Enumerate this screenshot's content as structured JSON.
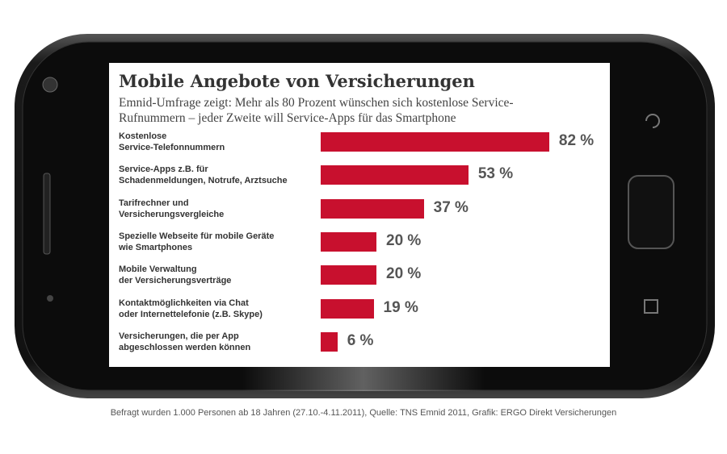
{
  "chart_data": {
    "type": "bar",
    "orientation": "horizontal",
    "title": "Mobile Angebote von Versicherungen",
    "subtitle": "Emnid-Umfrage zeigt: Mehr als 80 Prozent  wünschen sich kostenlose Service-\nRufnummern – jeder Zweite will Service-Apps für das Smartphone",
    "categories": [
      "Kostenlose\nService-Telefonnummern",
      "Service-Apps z.B. für\nSchadenmeldungen, Notrufe, Arztsuche",
      "Tarifrechner und\nVersicherungsvergleiche",
      "Spezielle Webseite für mobile Geräte\nwie Smartphones",
      "Mobile Verwaltung\nder Versicherungsverträge",
      "Kontaktmöglichkeiten via Chat\noder Internettelefonie (z.B. Skype)",
      "Versicherungen, die per App\nabgeschlossen werden können"
    ],
    "values": [
      82,
      53,
      37,
      20,
      20,
      19,
      6
    ],
    "value_labels": [
      "82 %",
      "53 %",
      "37 %",
      "20 %",
      "20 %",
      "19 %",
      "6 %"
    ],
    "color": "#c8102e",
    "source": "Befragt wurden 1.000 Personen ab 18 Jahren (27.10.-4.11.2011), Quelle: TNS Emnid 2011, Grafik: ERGO Direkt Versicherungen"
  }
}
